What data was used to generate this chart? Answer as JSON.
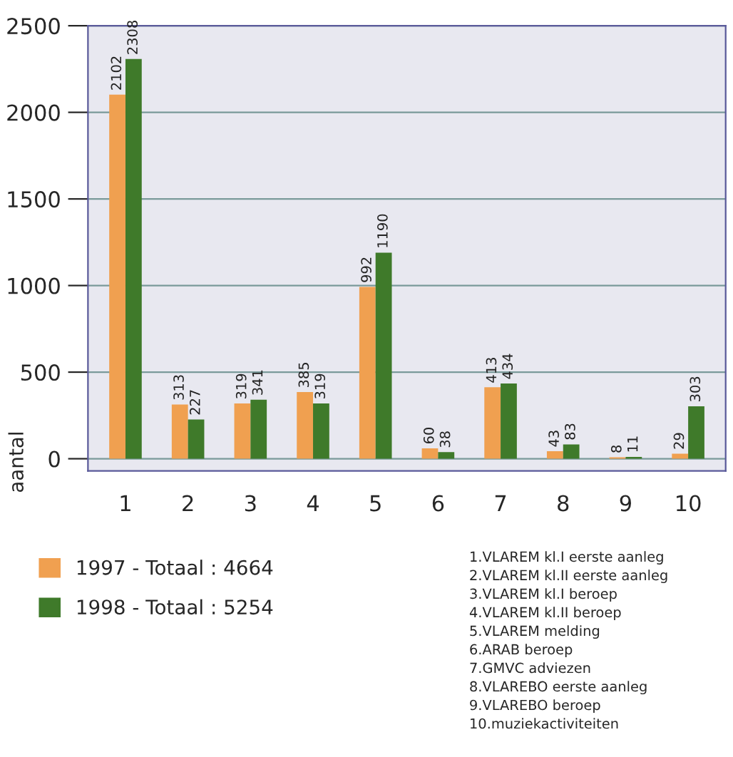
{
  "chart_data": {
    "type": "bar",
    "ylabel": "aantal",
    "categories": [
      "1",
      "2",
      "3",
      "4",
      "5",
      "6",
      "7",
      "8",
      "9",
      "10"
    ],
    "series": [
      {
        "name": "1997 - Totaal : 4664",
        "color": "#f0a050",
        "values": [
          2102,
          313,
          319,
          385,
          992,
          60,
          413,
          43,
          8,
          29
        ]
      },
      {
        "name": "1998 - Totaal : 5254",
        "color": "#3f7a2a",
        "values": [
          2308,
          227,
          341,
          319,
          1190,
          38,
          434,
          83,
          11,
          303
        ]
      }
    ],
    "ylim": [
      -70,
      2500
    ],
    "yticks": [
      0,
      500,
      1000,
      1500,
      2000,
      2500
    ],
    "grid": "y",
    "legend": "bottom left",
    "data_labels": true,
    "annotations": [
      "1.VLAREM kl.I eerste aanleg",
      "2.VLAREM kl.II eerste aanleg",
      "3.VLAREM kl.I beroep",
      "4.VLAREM kl.II beroep",
      "5.VLAREM melding",
      "6.ARAB beroep",
      "7.GMVC adviezen",
      "8.VLAREBO eerste aanleg",
      "9.VLAREBO beroep",
      "10.muziekactiviteiten"
    ]
  }
}
